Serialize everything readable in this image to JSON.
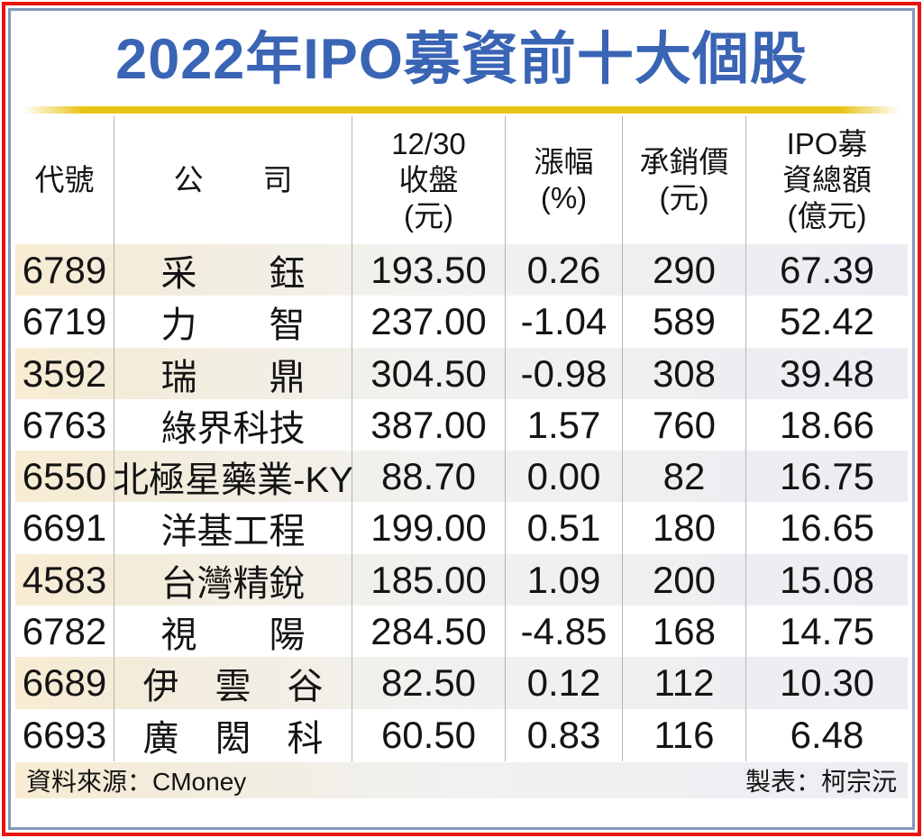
{
  "title": "2022年IPO募資前十大個股",
  "colors": {
    "title_blue": "#3a64b4",
    "divider_yellow": "#e8c215",
    "frame_red": "#e8130e",
    "frame_blue": "#8298ba",
    "row_highlight_left": "#f8ecd2",
    "row_highlight_right": "#ebedf2",
    "column_line_gray": "#b3b3b3"
  },
  "chart_data": {
    "type": "table",
    "title": "2022年IPO募資前十大個股",
    "columns": [
      "代號",
      "公　　司",
      "12/30\n收盤\n(元)",
      "漲幅\n(%)",
      "承銷價\n(元)",
      "IPO募\n資總額\n(億元)"
    ],
    "rows": [
      [
        "6789",
        "采　　鈺",
        "193.50",
        "0.26",
        "290",
        "67.39"
      ],
      [
        "6719",
        "力　　智",
        "237.00",
        "-1.04",
        "589",
        "52.42"
      ],
      [
        "3592",
        "瑞　　鼎",
        "304.50",
        "-0.98",
        "308",
        "39.48"
      ],
      [
        "6763",
        "綠界科技",
        "387.00",
        "1.57",
        "760",
        "18.66"
      ],
      [
        "6550",
        "北極星藥業-KY",
        "88.70",
        "0.00",
        "82",
        "16.75"
      ],
      [
        "6691",
        "洋基工程",
        "199.00",
        "0.51",
        "180",
        "16.65"
      ],
      [
        "4583",
        "台灣精銳",
        "185.00",
        "1.09",
        "200",
        "15.08"
      ],
      [
        "6782",
        "視　　陽",
        "284.50",
        "-4.85",
        "168",
        "14.75"
      ],
      [
        "6689",
        "伊　雲　谷",
        "82.50",
        "0.12",
        "112",
        "10.30"
      ],
      [
        "6693",
        "廣　閎　科",
        "60.50",
        "0.83",
        "116",
        "6.48"
      ]
    ],
    "highlighted_row_indices": [
      0,
      2,
      4,
      6,
      8
    ]
  },
  "footer": {
    "source": "資料來源：CMoney",
    "credit": "製表：柯宗沅"
  }
}
